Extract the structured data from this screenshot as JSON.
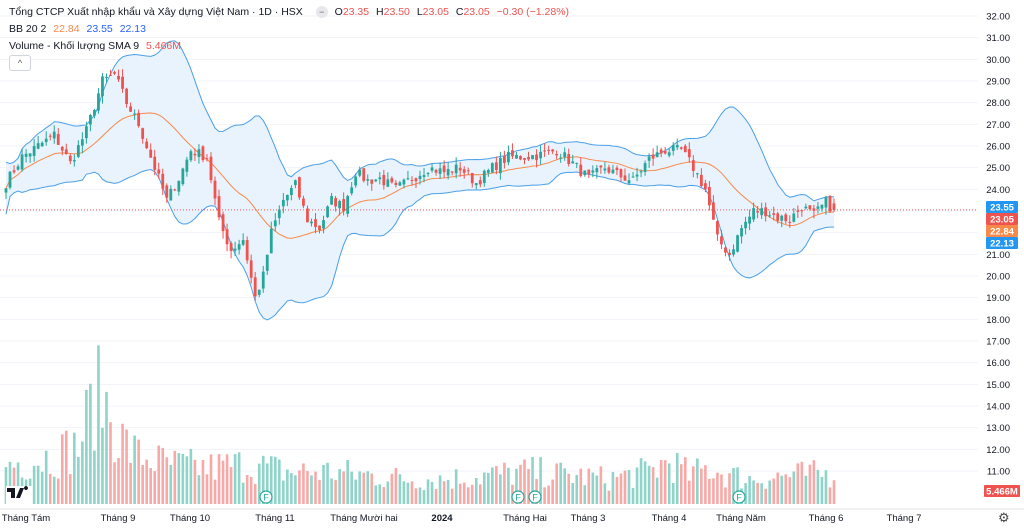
{
  "legend": {
    "title": "Tổng CTCP Xuất nhập khẩu và Xây dựng Việt Nam · 1D · HSX",
    "o_label": "O",
    "o": "23.35",
    "h_label": "H",
    "h": "23.50",
    "l_label": "L",
    "l": "23.05",
    "c_label": "C",
    "c": "23.05",
    "change": "−0.30 (−1.28%)",
    "bb_label": "BB 20 2",
    "bb_basis": "22.84",
    "bb_upper": "23.55",
    "bb_lower": "22.13",
    "vol_label": "Volume - Khối lượng SMA 9",
    "vol_value": "5.466M",
    "collapse_icon": "^",
    "menu_icon": "−"
  },
  "colors": {
    "up": "#26a69a",
    "down": "#ef5350",
    "vol_up": "#8fd3c9",
    "vol_down": "#f7a9a7",
    "band_line": "#4a9fe8",
    "band_fill": "#e9f3fd",
    "basis": "#f7894a",
    "last_price": "#ef5350",
    "grid": "#f0f3fa",
    "axis_text": "#131722"
  },
  "chart_data": {
    "type": "candlestick",
    "y_axis_ticks": [
      "32.00",
      "31.00",
      "30.00",
      "29.00",
      "28.00",
      "27.00",
      "26.00",
      "25.00",
      "24.00",
      "23.00",
      "22.00",
      "21.00",
      "20.00",
      "19.00",
      "18.00",
      "17.00",
      "16.00",
      "15.00",
      "14.00",
      "13.00",
      "12.00",
      "11.00"
    ],
    "ylim": [
      10.3,
      32.2
    ],
    "x_axis_ticks": [
      "Tháng Tám",
      "Tháng 9",
      "Tháng 10",
      "Tháng 11",
      "Tháng Mười hai",
      "2024",
      "Tháng Hai",
      "Tháng 3",
      "Tháng 4",
      "Tháng Năm",
      "Tháng 6",
      "Tháng 7"
    ],
    "price_badges": [
      {
        "label": "23.55",
        "kind": "upper"
      },
      {
        "label": "23.05",
        "kind": "last"
      },
      {
        "label": "22.84",
        "kind": "basis"
      },
      {
        "label": "22.13",
        "kind": "lower"
      }
    ],
    "volume_badge": "5.466M",
    "event_marker": "F",
    "close_keypoints": [
      [
        0,
        24.3
      ],
      [
        4,
        25.5
      ],
      [
        8,
        26.0
      ],
      [
        12,
        26.5
      ],
      [
        16,
        25.2
      ],
      [
        20,
        26.7
      ],
      [
        24,
        29.0
      ],
      [
        27,
        29.3
      ],
      [
        30,
        28.0
      ],
      [
        33,
        27.0
      ],
      [
        36,
        25.5
      ],
      [
        40,
        23.5
      ],
      [
        43,
        24.5
      ],
      [
        46,
        25.8
      ],
      [
        50,
        25.5
      ],
      [
        53,
        22.5
      ],
      [
        56,
        21.2
      ],
      [
        59,
        21.7
      ],
      [
        62,
        19.0
      ],
      [
        64,
        20.0
      ],
      [
        66,
        22.0
      ],
      [
        69,
        23.5
      ],
      [
        72,
        24.2
      ],
      [
        75,
        22.6
      ],
      [
        78,
        22.2
      ],
      [
        81,
        23.5
      ],
      [
        84,
        23.2
      ],
      [
        87,
        24.8
      ],
      [
        90,
        24.4
      ],
      [
        93,
        24.5
      ],
      [
        97,
        24.0
      ],
      [
        101,
        24.5
      ],
      [
        105,
        25.0
      ],
      [
        109,
        24.8
      ],
      [
        113,
        25.0
      ],
      [
        117,
        24.3
      ],
      [
        121,
        25.0
      ],
      [
        125,
        25.5
      ],
      [
        129,
        25.5
      ],
      [
        133,
        25.6
      ],
      [
        137,
        25.8
      ],
      [
        141,
        25.2
      ],
      [
        145,
        24.5
      ],
      [
        149,
        25.0
      ],
      [
        153,
        24.6
      ],
      [
        156,
        24.4
      ],
      [
        160,
        25.4
      ],
      [
        164,
        25.8
      ],
      [
        168,
        25.8
      ],
      [
        171,
        25.0
      ],
      [
        174,
        24.0
      ],
      [
        177,
        21.7
      ],
      [
        180,
        21.0
      ],
      [
        183,
        22.2
      ],
      [
        186,
        23.0
      ],
      [
        189,
        23.0
      ],
      [
        192,
        22.7
      ],
      [
        195,
        22.6
      ],
      [
        198,
        23.2
      ],
      [
        201,
        22.8
      ],
      [
        204,
        23.4
      ],
      [
        206,
        23.05
      ]
    ],
    "volume_keypoints": [
      [
        0,
        0.55
      ],
      [
        10,
        0.65
      ],
      [
        18,
        0.8
      ],
      [
        22,
        1.45
      ],
      [
        24,
        1.5
      ],
      [
        28,
        0.95
      ],
      [
        32,
        0.7
      ],
      [
        40,
        0.55
      ],
      [
        50,
        0.5
      ],
      [
        60,
        0.55
      ],
      [
        70,
        0.45
      ],
      [
        80,
        0.45
      ],
      [
        90,
        0.4
      ],
      [
        100,
        0.35
      ],
      [
        110,
        0.35
      ],
      [
        120,
        0.4
      ],
      [
        130,
        0.45
      ],
      [
        140,
        0.4
      ],
      [
        150,
        0.35
      ],
      [
        160,
        0.45
      ],
      [
        165,
        0.6
      ],
      [
        170,
        0.4
      ],
      [
        175,
        0.5
      ],
      [
        180,
        0.4
      ],
      [
        185,
        0.35
      ],
      [
        195,
        0.4
      ],
      [
        206,
        0.42
      ]
    ]
  }
}
